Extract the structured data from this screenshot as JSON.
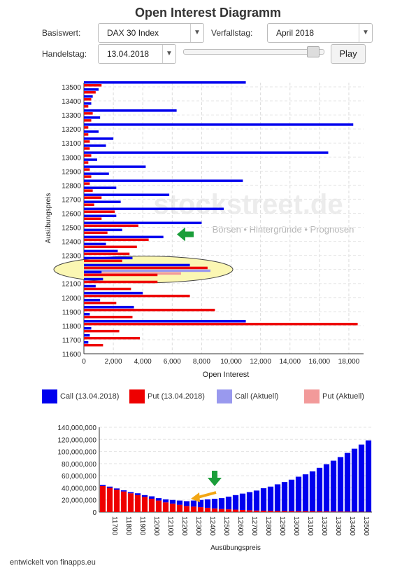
{
  "title": "Open Interest Diagramm",
  "controls": {
    "basiswert_label": "Basiswert:",
    "basiswert_value": "DAX 30 Index",
    "verfallstag_label": "Verfallstag:",
    "verfallstag_value": "April 2018",
    "handelstag_label": "Handelstag:",
    "handelstag_value": "13.04.2018",
    "slider_value": 0.96,
    "play_label": "Play"
  },
  "watermark": {
    "brand": "stockstreet.de",
    "tagline": "Börsen • Hintergründe • Prognosen"
  },
  "legend": [
    {
      "label": "Call (13.04.2018)",
      "color": "#0000ee"
    },
    {
      "label": "Put (13.04.2018)",
      "color": "#ee0000"
    },
    {
      "label": "Call (Aktuell)",
      "color": "#9999ee"
    },
    {
      "label": "Put (Aktuell)",
      "color": "#f29a9a"
    }
  ],
  "footer": "entwickelt von finapps.eu",
  "chart_data": [
    {
      "type": "bar",
      "orientation": "horizontal",
      "xlabel": "Open Interest",
      "ylabel": "Ausübungspreis",
      "xlim": [
        0,
        19000
      ],
      "xticks": [
        "0",
        "2,000",
        "4,000",
        "6,000",
        "8,000",
        "10,000",
        "12,000",
        "14,000",
        "16,000",
        "18,000"
      ],
      "yticks": [
        "13500",
        "13400",
        "13300",
        "13200",
        "13100",
        "13000",
        "12900",
        "12800",
        "12700",
        "12600",
        "12500",
        "12400",
        "12300",
        "12200",
        "12100",
        "12000",
        "11900",
        "11800",
        "11700",
        "11600"
      ],
      "strikes": [
        13500,
        13450,
        13400,
        13350,
        13300,
        13250,
        13200,
        13150,
        13100,
        13050,
        13000,
        12950,
        12900,
        12850,
        12800,
        12750,
        12700,
        12650,
        12600,
        12550,
        12500,
        12450,
        12400,
        12350,
        12300,
        12250,
        12200,
        12150,
        12100,
        12050,
        12000,
        11950,
        11900,
        11850,
        11800,
        11750,
        11700,
        11650,
        11600
      ],
      "series": [
        {
          "name": "Call (13.04.2018)",
          "color": "#0000ee",
          "values": [
            11000,
            1000,
            600,
            500,
            6300,
            1100,
            18300,
            1000,
            2000,
            1500,
            16600,
            900,
            4200,
            1700,
            10800,
            2200,
            5800,
            2500,
            9500,
            2200,
            8000,
            2600,
            5400,
            1500,
            2300,
            3300,
            7200,
            1200,
            1300,
            800,
            4000,
            1100,
            3400,
            400,
            11000,
            500,
            400,
            300,
            0
          ]
        },
        {
          "name": "Put (13.04.2018)",
          "color": "#ee0000",
          "values": [
            1200,
            800,
            500,
            300,
            600,
            500,
            300,
            300,
            400,
            400,
            500,
            300,
            400,
            500,
            400,
            600,
            1200,
            700,
            2100,
            1200,
            3700,
            1600,
            4400,
            3600,
            3100,
            2600,
            8400,
            5000,
            5000,
            3200,
            7200,
            2200,
            8900,
            3300,
            18600,
            2400,
            3800,
            1300,
            0
          ]
        },
        {
          "name": "Call (Aktuell)",
          "color": "#9999ee",
          "values": [
            0,
            0,
            0,
            0,
            0,
            0,
            0,
            0,
            0,
            0,
            0,
            0,
            0,
            0,
            0,
            0,
            0,
            0,
            0,
            0,
            0,
            0,
            0,
            0,
            0,
            0,
            8600,
            0,
            0,
            0,
            0,
            0,
            0,
            0,
            0,
            0,
            0,
            0,
            0
          ]
        },
        {
          "name": "Put (Aktuell)",
          "color": "#f29a9a",
          "values": [
            0,
            0,
            0,
            0,
            0,
            0,
            0,
            0,
            0,
            0,
            0,
            0,
            0,
            0,
            0,
            0,
            0,
            0,
            0,
            0,
            0,
            0,
            0,
            0,
            0,
            0,
            6600,
            0,
            0,
            0,
            0,
            0,
            0,
            0,
            0,
            0,
            0,
            0,
            0
          ]
        }
      ],
      "highlight_strike": 12200,
      "arrow_strike": 12450,
      "grid": true
    },
    {
      "type": "bar",
      "stacked": true,
      "xlabel": "Ausübungspreis",
      "ylim": [
        0,
        140000000
      ],
      "yticks": [
        "0",
        "20,000,000",
        "40,000,000",
        "60,000,000",
        "80,000,000",
        "100,000,000",
        "120,000,000",
        "140,000,000"
      ],
      "xticks": [
        "11700",
        "11800",
        "11900",
        "12000",
        "12100",
        "12200",
        "12300",
        "12400",
        "12500",
        "12600",
        "12700",
        "12800",
        "12900",
        "13000",
        "13100",
        "13200",
        "13300",
        "13400",
        "13500"
      ],
      "categories": [
        11650,
        11700,
        11750,
        11800,
        11850,
        11900,
        11950,
        12000,
        12050,
        12100,
        12150,
        12200,
        12250,
        12300,
        12350,
        12400,
        12450,
        12500,
        12550,
        12600,
        12650,
        12700,
        12750,
        12800,
        12850,
        12900,
        12950,
        13000,
        13050,
        13100,
        13150,
        13200,
        13250,
        13300,
        13350,
        13400,
        13450,
        13500,
        13550
      ],
      "series": [
        {
          "name": "Put",
          "color": "#ee0000",
          "values": [
            43,
            40,
            37,
            34,
            31,
            28,
            25,
            22,
            19,
            16,
            14,
            12,
            10,
            9,
            8,
            7,
            6,
            5,
            4.5,
            4,
            3.5,
            3,
            2.5,
            2.3,
            2,
            1.8,
            1.6,
            1.5,
            1.4,
            1.3,
            1.2,
            1.1,
            1,
            0.9,
            0.8,
            0.7,
            0.6,
            0.5,
            0.4
          ]
        },
        {
          "name": "Call",
          "color": "#0000ee",
          "values": [
            2,
            2,
            2,
            2,
            2,
            3,
            3,
            4,
            4,
            5,
            6,
            7,
            8,
            10,
            12,
            14,
            16,
            18,
            21,
            24,
            27,
            30,
            33,
            37,
            40,
            44,
            48,
            52,
            57,
            61,
            66,
            72,
            78,
            84,
            90,
            97,
            104,
            111,
            118
          ]
        }
      ],
      "arrow_strike": 12450,
      "min_strike": 12300
    }
  ]
}
